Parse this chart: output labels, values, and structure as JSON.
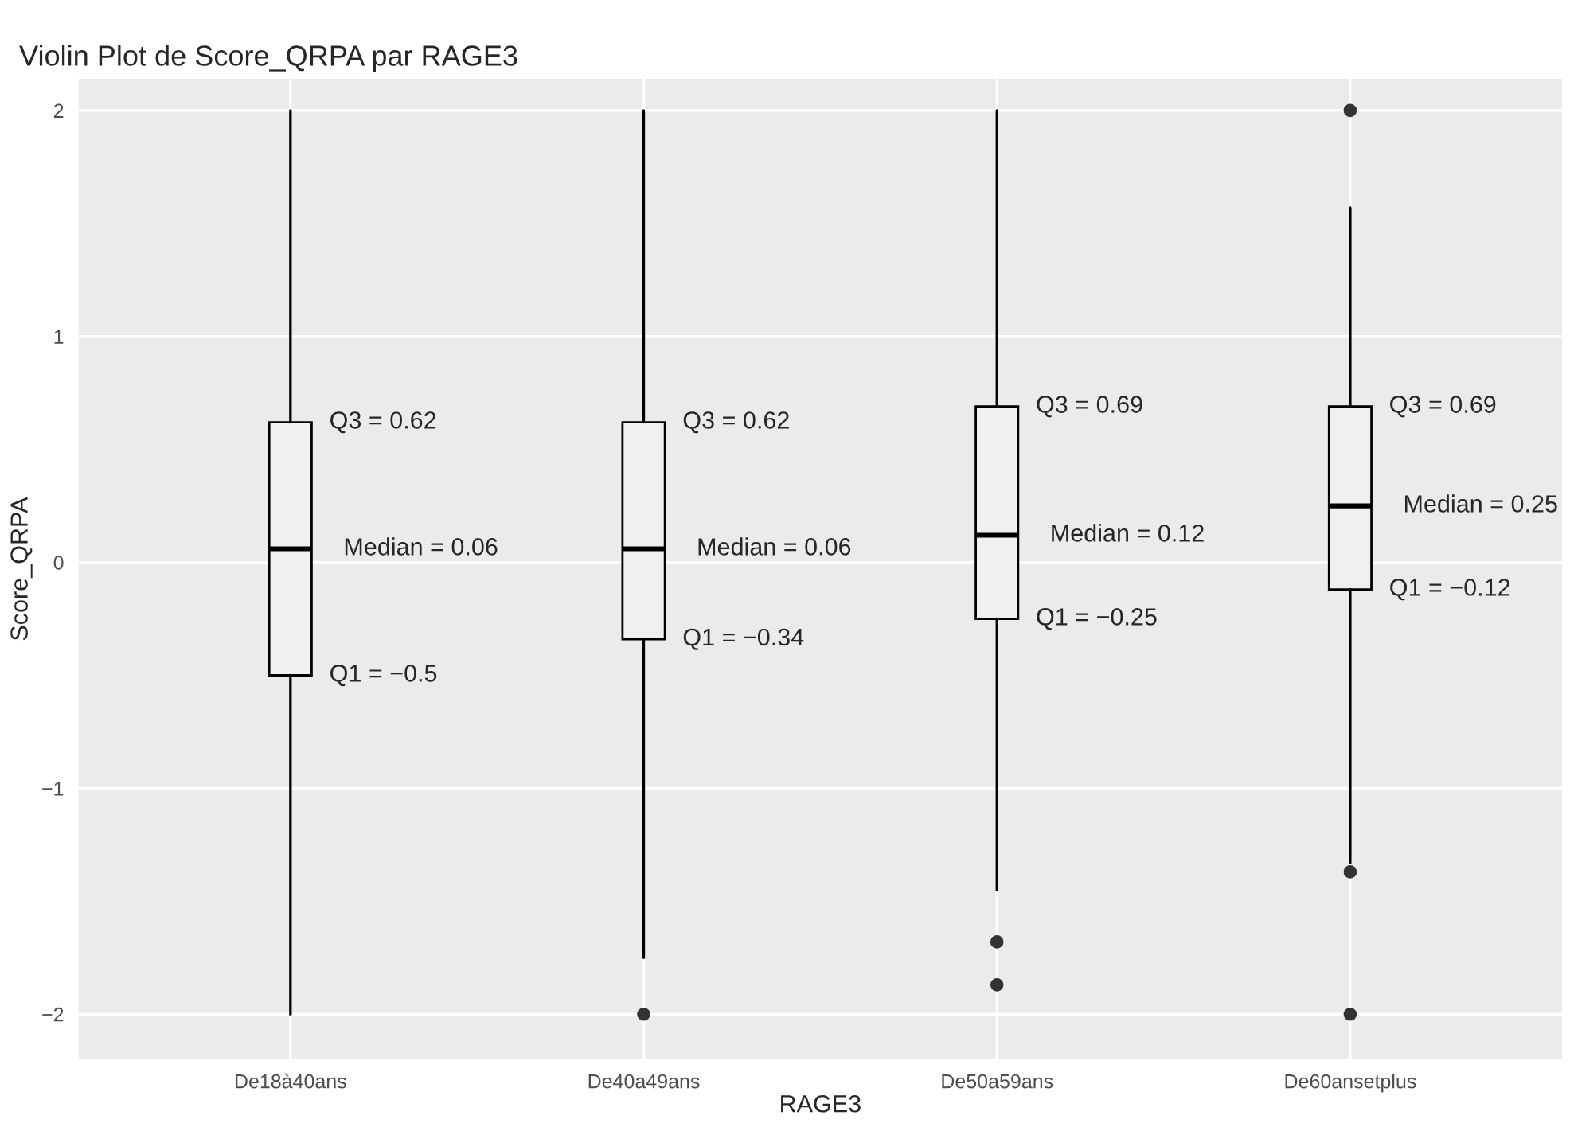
{
  "chart_data": {
    "type": "box",
    "title": "Violin Plot de Score_QRPA par RAGE3",
    "xlabel": "RAGE3",
    "ylabel": "Score_QRPA",
    "categories": [
      "De18à40ans",
      "De40a49ans",
      "De50a59ans",
      "De60ansetplus"
    ],
    "boxes": [
      {
        "low": -2,
        "q1": -0.5,
        "median": 0.06,
        "q3": 0.62,
        "high": 2
      },
      {
        "low": -1.75,
        "q1": -0.34,
        "median": 0.06,
        "q3": 0.62,
        "high": 2,
        "outliers": [
          -2
        ]
      },
      {
        "low": -1.45,
        "q1": -0.25,
        "median": 0.12,
        "q3": 0.69,
        "high": 2,
        "outliers": [
          -1.68,
          -1.87
        ]
      },
      {
        "low": -1.33,
        "q1": -0.12,
        "median": 0.25,
        "q3": 0.69,
        "high": 1.57,
        "outliers": [
          2,
          -1.37,
          -2
        ]
      }
    ],
    "annotations": [
      {
        "text": "Q3 = 0.62",
        "x": "De18à40ans",
        "y": 0.62
      },
      {
        "text": "Median = 0.06",
        "x": "De18à40ans",
        "y": 0.06
      },
      {
        "text": "Q1 = −0.5",
        "x": "De18à40ans",
        "y": -0.5
      },
      {
        "text": "Q3 = 0.62",
        "x": "De40a49ans",
        "y": 0.62
      },
      {
        "text": "Median = 0.06",
        "x": "De40a49ans",
        "y": 0.06
      },
      {
        "text": "Q1 = −0.34",
        "x": "De40a49ans",
        "y": -0.34
      },
      {
        "text": "Q3 = 0.69",
        "x": "De50a59ans",
        "y": 0.69
      },
      {
        "text": "Median = 0.12",
        "x": "De50a59ans",
        "y": 0.12
      },
      {
        "text": "Q1 = −0.25",
        "x": "De50a59ans",
        "y": -0.25
      },
      {
        "text": "Q3 = 0.69",
        "x": "De60ansetplus",
        "y": 0.69
      },
      {
        "text": "Median = 0.25",
        "x": "De60ansetplus",
        "y": 0.25
      },
      {
        "text": "Q1 = −0.12",
        "x": "De60ansetplus",
        "y": -0.12
      }
    ],
    "ylim": [
      -2.2,
      2.14
    ],
    "yticks": [
      -2,
      -1,
      0,
      1,
      2
    ],
    "grid": true
  }
}
